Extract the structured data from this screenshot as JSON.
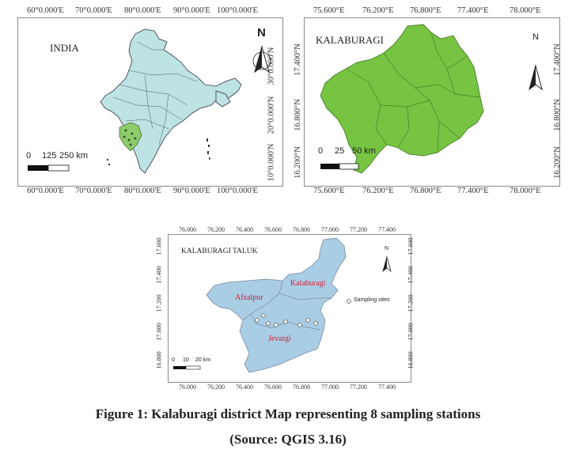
{
  "panels": {
    "india": {
      "title": "INDIA",
      "x_ticks": [
        "60°0.000'E",
        "70°0.000'E",
        "80°0.000'E",
        "90°0.000'E",
        "100°0.000'E"
      ],
      "y_ticks": [
        "30°0.000'N",
        "20°0.000'N",
        "10°0.000'N"
      ],
      "scale_labels": [
        "0",
        "125",
        "250 km"
      ],
      "north": "N",
      "colors": {
        "land": "#bde3e3",
        "highlight": "#8ccc6a",
        "border": "#334"
      }
    },
    "kalaburagi": {
      "title": "KALABURAGI",
      "x_ticks": [
        "75.600°E",
        "76.200°E",
        "76.800°E",
        "77.400°E",
        "78.000°E"
      ],
      "y_ticks": [
        "17.400°N",
        "16.800°N",
        "16.200°N"
      ],
      "scale_labels": [
        "0",
        "25",
        "50 km"
      ],
      "north": "N",
      "colors": {
        "land": "#76c442",
        "border": "#4b7f2a"
      }
    },
    "taluk": {
      "title": "KALABURAGI TALUK",
      "x_ticks": [
        "76.000",
        "76.200",
        "76.400",
        "76.600",
        "76.800",
        "77.000",
        "77.200",
        "77.400"
      ],
      "y_ticks": [
        "17.600",
        "17.400",
        "17.200",
        "17.000",
        "16.800"
      ],
      "scale_labels": [
        "0",
        "10",
        "20 km"
      ],
      "north": "N",
      "place_labels": [
        "Afzalpur",
        "Kalaburagi",
        "Jevargi"
      ],
      "legend_label": "Sampling sites",
      "colors": {
        "land": "#a9cde5",
        "border": "#7a8a99",
        "place_text": "#d0213a"
      }
    }
  },
  "caption": {
    "line1": "Figure 1: Kalaburagi district Map representing 8 sampling stations",
    "line2": "(Source: QGIS 3.16)"
  }
}
